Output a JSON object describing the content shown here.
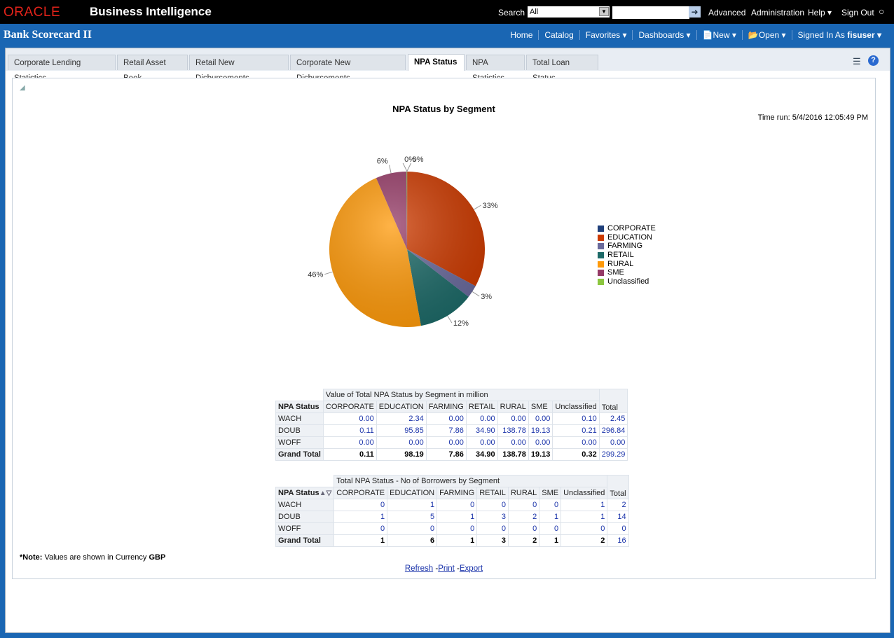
{
  "header": {
    "logo": "ORACLE",
    "product": "Business Intelligence",
    "search_label": "Search",
    "search_scope": "All",
    "search_value": "",
    "advanced": "Advanced",
    "administration": "Administration",
    "help": "Help ▾",
    "sign_out": "Sign Out"
  },
  "subheader": {
    "title": "Bank Scorecard II",
    "nav": [
      "Home",
      "Catalog",
      "Favorites ▾",
      "Dashboards ▾",
      "New ▾",
      "Open ▾"
    ],
    "signed_in_label": "Signed In As",
    "user": "fisuser ▾"
  },
  "tabs": [
    "Corporate Lending Statistics",
    "Retail Asset Book",
    "Retail New Disbursements",
    "Corporate New Disbursements",
    "NPA Status",
    "NPA Statistics",
    "Total Loan Status"
  ],
  "active_tab": "NPA Status",
  "report": {
    "title": "NPA Status by Segment",
    "time_run": "Time run: 5/4/2016 12:05:49 PM"
  },
  "chart_data": {
    "type": "pie",
    "title": "NPA Status by Segment",
    "legend_position": "right",
    "categories": [
      "CORPORATE",
      "EDUCATION",
      "FARMING",
      "RETAIL",
      "RURAL",
      "SME",
      "Unclassified"
    ],
    "values": [
      0.11,
      98.19,
      7.86,
      34.9,
      138.78,
      19.13,
      0.32
    ],
    "labels": [
      "0%",
      "33%",
      "3%",
      "12%",
      "46%",
      "6%",
      "0%"
    ],
    "colors": [
      "#1f3f7a",
      "#cc3a00",
      "#6a6a9c",
      "#1d6a68",
      "#ff9a0a",
      "#953a66",
      "#8cc63f"
    ]
  },
  "table1": {
    "caption": "Value of Total NPA Status by Segment in million",
    "row_header": "NPA Status",
    "columns": [
      "CORPORATE",
      "EDUCATION",
      "FARMING",
      "RETAIL",
      "RURAL",
      "SME",
      "Unclassified"
    ],
    "total_label": "Total",
    "rows": [
      {
        "label": "WACH",
        "values": [
          "0.00",
          "2.34",
          "0.00",
          "0.00",
          "0.00",
          "0.00",
          "0.10"
        ],
        "total": "2.45"
      },
      {
        "label": "DOUB",
        "values": [
          "0.11",
          "95.85",
          "7.86",
          "34.90",
          "138.78",
          "19.13",
          "0.21"
        ],
        "total": "296.84"
      },
      {
        "label": "WOFF",
        "values": [
          "0.00",
          "0.00",
          "0.00",
          "0.00",
          "0.00",
          "0.00",
          "0.00"
        ],
        "total": "0.00"
      },
      {
        "label": "Grand Total",
        "values": [
          "0.11",
          "98.19",
          "7.86",
          "34.90",
          "138.78",
          "19.13",
          "0.32"
        ],
        "total": "299.29"
      }
    ]
  },
  "table2": {
    "caption": "Total NPA Status - No of Borrowers by Segment",
    "row_header": "NPA Status",
    "columns": [
      "CORPORATE",
      "EDUCATION",
      "FARMING",
      "RETAIL",
      "RURAL",
      "SME",
      "Unclassified"
    ],
    "total_label": "Total",
    "rows": [
      {
        "label": "WACH",
        "values": [
          "0",
          "1",
          "0",
          "0",
          "0",
          "0",
          "1"
        ],
        "total": "2"
      },
      {
        "label": "DOUB",
        "values": [
          "1",
          "5",
          "1",
          "3",
          "2",
          "1",
          "1"
        ],
        "total": "14"
      },
      {
        "label": "WOFF",
        "values": [
          "0",
          "0",
          "0",
          "0",
          "0",
          "0",
          "0"
        ],
        "total": "0"
      },
      {
        "label": "Grand Total",
        "values": [
          "1",
          "6",
          "1",
          "3",
          "2",
          "1",
          "2"
        ],
        "total": "16"
      }
    ]
  },
  "note": {
    "prefix": "*Note:",
    "text": " Values are shown in Currency ",
    "currency": "GBP"
  },
  "links": {
    "refresh": "Refresh",
    "print": "Print",
    "export": "Export"
  }
}
